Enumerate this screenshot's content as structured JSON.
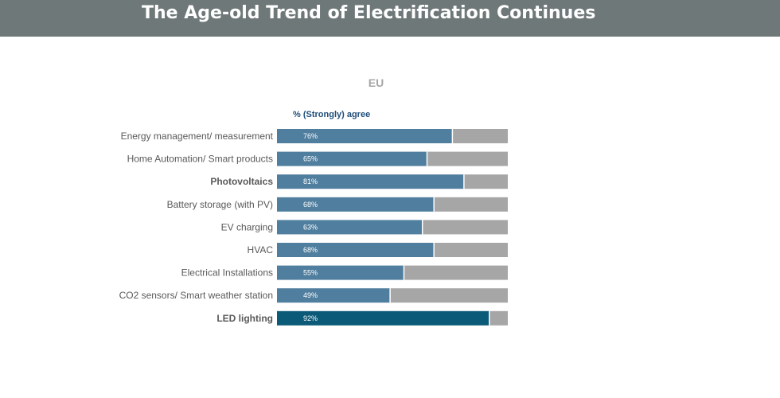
{
  "header": {
    "title": "The Age-old Trend of Electrification Continues"
  },
  "chart_data": {
    "type": "bar",
    "orientation": "horizontal",
    "stacked_to_100": true,
    "title": "EU",
    "subtitle": "% (Strongly) agree",
    "categories": [
      "Energy management/ measurement",
      "Home Automation/ Smart products",
      "Photovoltaics",
      "Battery storage (with PV)",
      "EV charging",
      "HVAC",
      "Electrical Installations",
      "CO2 sensors/ Smart weather station",
      "LED lighting"
    ],
    "bold_categories": [
      "Photovoltaics",
      "LED lighting"
    ],
    "values": [
      76,
      65,
      81,
      68,
      63,
      68,
      55,
      49,
      92
    ],
    "value_labels": [
      "76%",
      "65%",
      "81%",
      "68%",
      "63%",
      "68%",
      "55%",
      "49%",
      "92%"
    ],
    "xlim": [
      0,
      100
    ],
    "colors": {
      "agree": "#4f7e9e",
      "highlight": "#0b5a78",
      "remainder": "#a6a6a6"
    },
    "highlight_category": "LED lighting",
    "grid": false,
    "legend": "none"
  }
}
